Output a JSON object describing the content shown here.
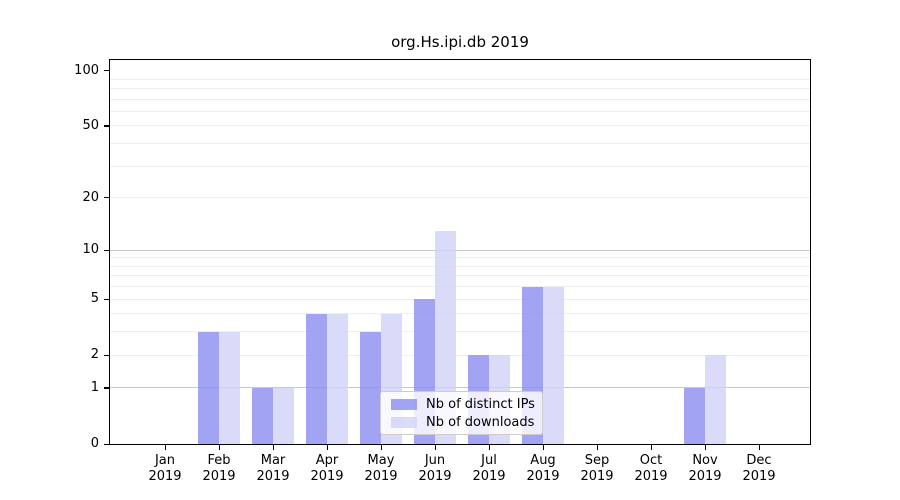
{
  "chart_data": {
    "type": "bar",
    "title": "org.Hs.ipi.db 2019",
    "categories": [
      "Jan",
      "Feb",
      "Mar",
      "Apr",
      "May",
      "Jun",
      "Jul",
      "Aug",
      "Sep",
      "Oct",
      "Nov",
      "Dec"
    ],
    "category_year": "2019",
    "series": [
      {
        "name": "Nb of distinct IPs",
        "color": "#8f8ff0",
        "values": [
          0,
          3,
          1,
          4,
          3,
          5,
          2,
          6,
          0,
          0,
          1,
          0
        ]
      },
      {
        "name": "Nb of downloads",
        "color": "#d2d2f8",
        "values": [
          0,
          3,
          1,
          4,
          4,
          13,
          2,
          6,
          0,
          0,
          2,
          0
        ]
      }
    ],
    "y_ticks": [
      0,
      1,
      2,
      5,
      10,
      20,
      50,
      100
    ],
    "y_scale": "log1p",
    "ylim": [
      0,
      115
    ],
    "grid": {
      "show": true,
      "decade_color": "#c8c8c8",
      "minor_color": "#eeeeee"
    },
    "legend": {
      "position": "inside-bottom-center"
    }
  },
  "colors": {
    "axis": "#000000",
    "background": "#ffffff",
    "legend_border": "#cccccc"
  }
}
